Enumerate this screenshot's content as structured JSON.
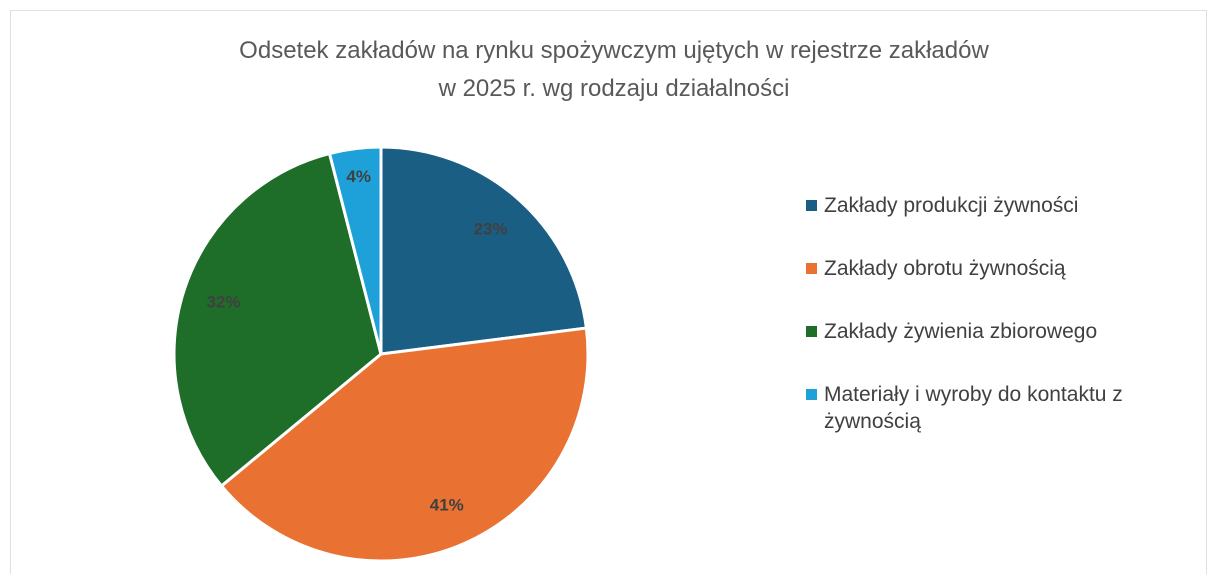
{
  "chart_data": {
    "type": "pie",
    "title": [
      "Odsetek zakładów na rynku spożywczym ujętych w rejestrze zakładów",
      "w 2025 r. wg rodzaju działalności"
    ],
    "categories": [
      "Zakłady produkcji żywności",
      "Zakłady obrotu żywnością",
      "Zakłady żywienia zbiorowego",
      "Materiały i wyroby do kontaktu z żywnością"
    ],
    "values": [
      23,
      41,
      32,
      4
    ],
    "value_labels": [
      "23%",
      "41%",
      "32%",
      "4%"
    ],
    "colors": [
      "#1a5e84",
      "#e97132",
      "#1e6e2a",
      "#1ea1d8"
    ],
    "legend": "right"
  }
}
